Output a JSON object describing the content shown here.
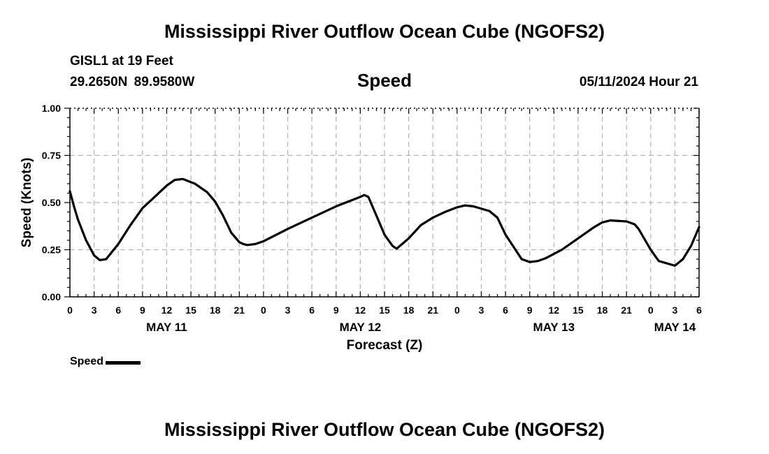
{
  "chart_data": {
    "type": "line",
    "title": "Mississippi River Outflow Ocean Cube (NGOFS2)",
    "footer_title": "Mississippi River Outflow Ocean Cube (NGOFS2)",
    "panel_title": "Speed",
    "station": "GISL1 at 19 Feet",
    "location": "29.2650N  89.9580W",
    "timestamp": "05/11/2024 Hour 21",
    "xlabel": "Forecast (Z)",
    "ylabel": "Speed (Knots)",
    "xlim": [
      0,
      78
    ],
    "ylim": [
      0,
      1
    ],
    "grid": true,
    "y_ticks": [
      0,
      0.25,
      0.5,
      0.75,
      1.0
    ],
    "y_tick_labels": [
      "0.00",
      "0.25",
      "0.50",
      "0.75",
      "1.00"
    ],
    "x_ticks": [
      0,
      3,
      6,
      9,
      12,
      15,
      18,
      21,
      24,
      27,
      30,
      33,
      36,
      39,
      42,
      45,
      48,
      51,
      54,
      57,
      60,
      63,
      66,
      69,
      72,
      75,
      78
    ],
    "x_tick_labels": [
      "0",
      "3",
      "6",
      "9",
      "12",
      "15",
      "18",
      "21",
      "0",
      "3",
      "6",
      "9",
      "12",
      "15",
      "18",
      "21",
      "0",
      "3",
      "6",
      "9",
      "12",
      "15",
      "18",
      "21",
      "0",
      "3",
      "6"
    ],
    "date_labels": [
      {
        "hour": 12,
        "label": "MAY 11"
      },
      {
        "hour": 36,
        "label": "MAY 12"
      },
      {
        "hour": 60,
        "label": "MAY 13"
      },
      {
        "hour": 75,
        "label": "MAY 14"
      }
    ],
    "legend": [
      {
        "name": "Speed",
        "location": "bottom-left"
      }
    ],
    "series": [
      {
        "name": "Speed",
        "color": "#000000",
        "x": [
          0,
          0.5,
          1,
          2,
          3,
          3.7,
          4.5,
          6,
          7.5,
          9,
          10.5,
          12,
          13,
          14,
          15.5,
          17,
          18,
          19,
          20,
          21,
          21.5,
          22,
          23,
          24,
          27,
          30,
          33,
          36,
          36.5,
          37,
          38,
          39,
          40,
          40.5,
          42,
          43.5,
          45,
          46.5,
          48,
          49,
          50,
          52,
          53,
          54,
          56,
          57,
          58,
          59,
          61,
          63,
          65,
          66,
          67,
          69,
          70,
          70.5,
          72,
          72.5,
          73,
          75,
          76,
          77,
          78
        ],
        "values": [
          0.56,
          0.48,
          0.41,
          0.3,
          0.22,
          0.195,
          0.2,
          0.28,
          0.38,
          0.47,
          0.53,
          0.59,
          0.62,
          0.625,
          0.6,
          0.555,
          0.505,
          0.43,
          0.34,
          0.29,
          0.28,
          0.275,
          0.28,
          0.295,
          0.36,
          0.42,
          0.48,
          0.53,
          0.54,
          0.53,
          0.43,
          0.33,
          0.27,
          0.255,
          0.31,
          0.38,
          0.42,
          0.45,
          0.475,
          0.485,
          0.48,
          0.455,
          0.42,
          0.33,
          0.2,
          0.185,
          0.19,
          0.205,
          0.25,
          0.31,
          0.37,
          0.395,
          0.405,
          0.4,
          0.385,
          0.36,
          0.25,
          0.22,
          0.19,
          0.165,
          0.2,
          0.27,
          0.37
        ]
      }
    ]
  }
}
